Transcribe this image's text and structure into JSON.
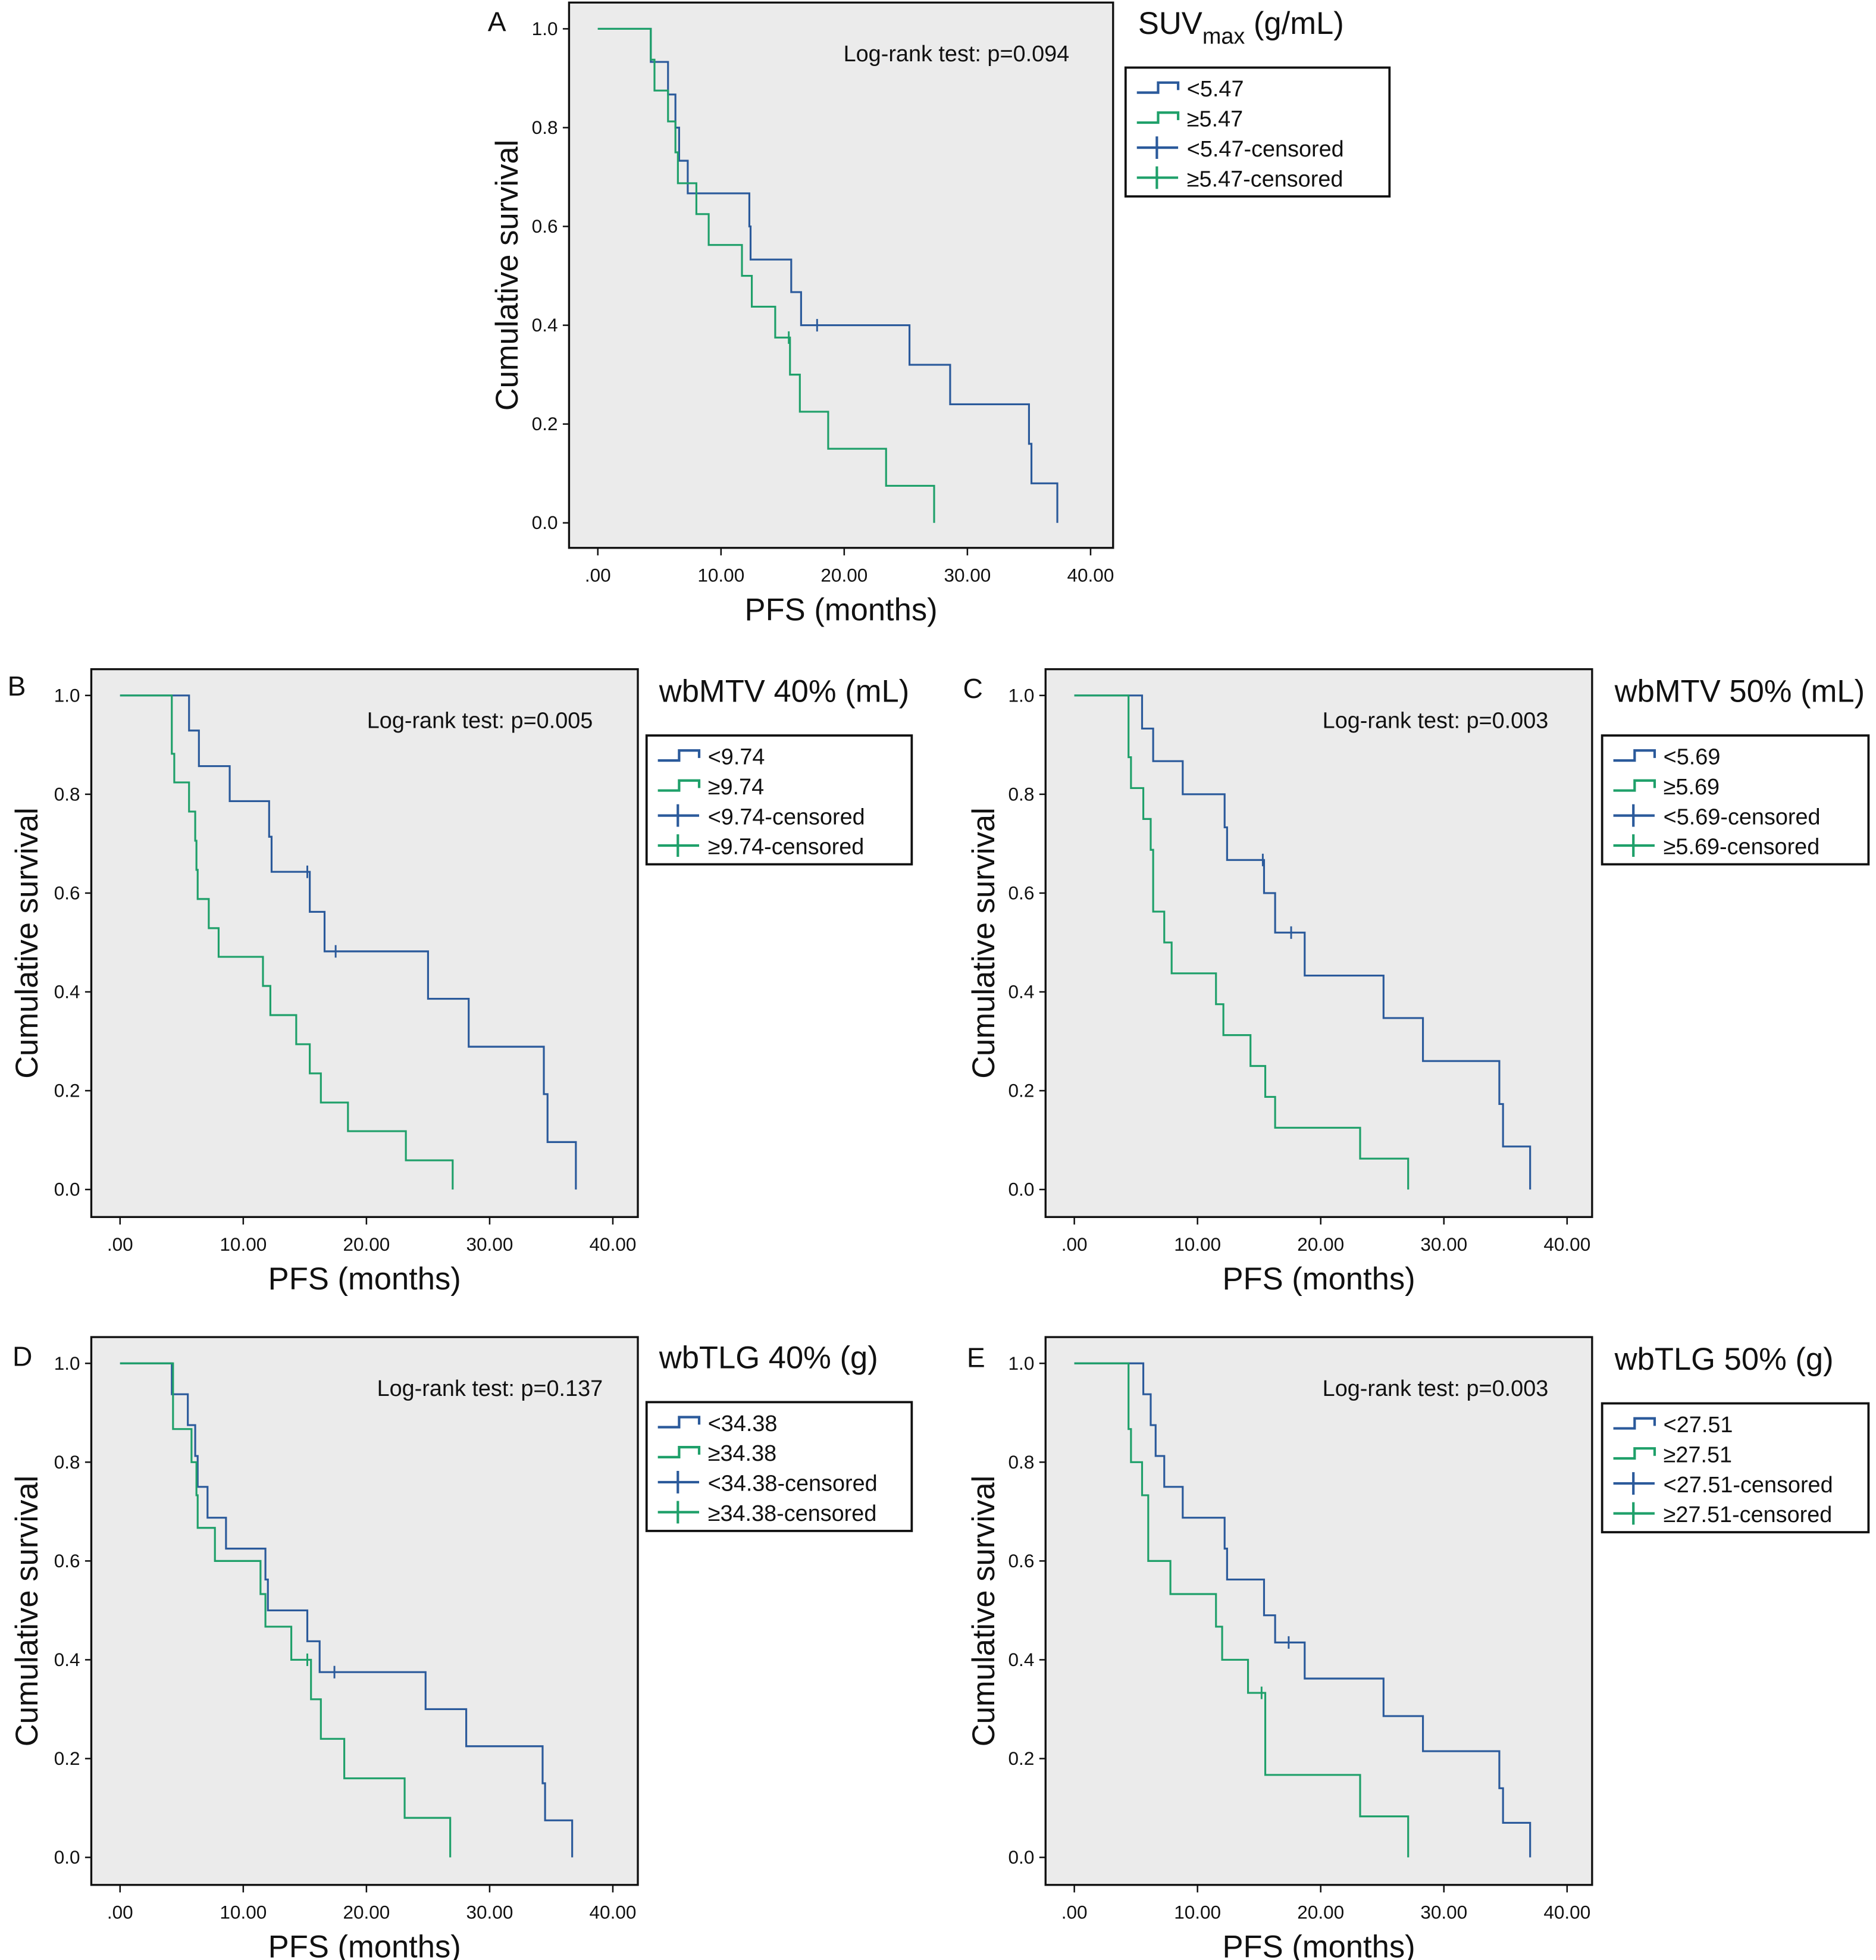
{
  "colors": {
    "low": "#2b5a9b",
    "high": "#1fa06a",
    "plot_bg": "#ebebeb",
    "frame": "#111111"
  },
  "chart_data": [
    {
      "type": "line",
      "subtype": "kaplan-meier step",
      "panel_label": "A",
      "legend_title": {
        "main": "SUV",
        "sub": "max",
        "rest": " (g/mL)"
      },
      "annotation": "Log-rank test: p=0.094",
      "xlabel": "PFS (months)",
      "ylabel": "Cumulative survival",
      "xlim": [
        0,
        40
      ],
      "ylim": [
        0,
        1
      ],
      "xticks": [
        ".00",
        "10.00",
        "20.00",
        "30.00",
        "40.00"
      ],
      "xtick_values": [
        0,
        10,
        20,
        30,
        40
      ],
      "yticks": [
        "0.0",
        "0.2",
        "0.4",
        "0.6",
        "0.8",
        "1.0"
      ],
      "ytick_values": [
        0,
        0.2,
        0.4,
        0.6,
        0.8,
        1.0
      ],
      "legend": [
        "<5.47",
        "≥5.47",
        "<5.47-censored",
        "≥5.47-censored"
      ],
      "series": [
        {
          "group": "low",
          "steps": [
            [
              0,
              1
            ],
            [
              4.3,
              0.933
            ],
            [
              5.7,
              0.867
            ],
            [
              6.3,
              0.8
            ],
            [
              6.6,
              0.733
            ],
            [
              7.3,
              0.667
            ],
            [
              12.3,
              0.6
            ],
            [
              12.4,
              0.533
            ],
            [
              15.7,
              0.467
            ],
            [
              16.5,
              0.4
            ],
            [
              25.3,
              0.32
            ],
            [
              28.6,
              0.24
            ],
            [
              35.0,
              0.16
            ],
            [
              35.2,
              0.08
            ],
            [
              37.3,
              0
            ]
          ],
          "censored": [
            [
              17.8,
              0.4
            ]
          ]
        },
        {
          "group": "high",
          "steps": [
            [
              0,
              1
            ],
            [
              4.3,
              0.9375
            ],
            [
              4.6,
              0.875
            ],
            [
              5.7,
              0.8125
            ],
            [
              6.3,
              0.75
            ],
            [
              6.5,
              0.6875
            ],
            [
              8.0,
              0.625
            ],
            [
              9.0,
              0.5625
            ],
            [
              11.7,
              0.5
            ],
            [
              12.5,
              0.4375
            ],
            [
              14.4,
              0.375
            ],
            [
              15.6,
              0.3
            ],
            [
              16.4,
              0.225
            ],
            [
              18.7,
              0.15
            ],
            [
              23.4,
              0.075
            ],
            [
              27.3,
              0
            ]
          ],
          "censored": [
            [
              15.5,
              0.375
            ]
          ]
        }
      ]
    },
    {
      "type": "line",
      "subtype": "kaplan-meier step",
      "panel_label": "B",
      "legend_title": {
        "main": "wbMTV 40% (mL)",
        "sub": "",
        "rest": ""
      },
      "annotation": "Log-rank test: p=0.005",
      "xlabel": "PFS (months)",
      "ylabel": "Cumulative survival",
      "xlim": [
        0,
        40
      ],
      "ylim": [
        0,
        1
      ],
      "xticks": [
        ".00",
        "10.00",
        "20.00",
        "30.00",
        "40.00"
      ],
      "xtick_values": [
        0,
        10,
        20,
        30,
        40
      ],
      "yticks": [
        "0.0",
        "0.2",
        "0.4",
        "0.6",
        "0.8",
        "1.0"
      ],
      "ytick_values": [
        0,
        0.2,
        0.4,
        0.6,
        0.8,
        1.0
      ],
      "legend": [
        "<9.74",
        "≥9.74",
        "<9.74-censored",
        "≥9.74-censored"
      ],
      "series": [
        {
          "group": "low",
          "steps": [
            [
              0,
              1
            ],
            [
              5.6,
              0.929
            ],
            [
              6.4,
              0.857
            ],
            [
              8.9,
              0.786
            ],
            [
              12.1,
              0.714
            ],
            [
              12.3,
              0.643
            ],
            [
              15.4,
              0.562
            ],
            [
              16.6,
              0.482
            ],
            [
              25.0,
              0.386
            ],
            [
              28.3,
              0.289
            ],
            [
              34.4,
              0.193
            ],
            [
              34.7,
              0.096
            ],
            [
              37.0,
              0
            ]
          ],
          "censored": [
            [
              15.2,
              0.643
            ],
            [
              17.5,
              0.482
            ]
          ]
        },
        {
          "group": "high",
          "steps": [
            [
              0,
              1
            ],
            [
              4.2,
              0.882
            ],
            [
              4.4,
              0.824
            ],
            [
              5.6,
              0.765
            ],
            [
              6.1,
              0.706
            ],
            [
              6.2,
              0.647
            ],
            [
              6.3,
              0.588
            ],
            [
              7.2,
              0.529
            ],
            [
              8.0,
              0.471
            ],
            [
              11.6,
              0.412
            ],
            [
              12.2,
              0.353
            ],
            [
              14.3,
              0.294
            ],
            [
              15.4,
              0.235
            ],
            [
              16.3,
              0.176
            ],
            [
              18.5,
              0.118
            ],
            [
              23.2,
              0.059
            ],
            [
              27.0,
              0
            ]
          ],
          "censored": []
        }
      ]
    },
    {
      "type": "line",
      "subtype": "kaplan-meier step",
      "panel_label": "C",
      "legend_title": {
        "main": "wbMTV 50% (mL)",
        "sub": "",
        "rest": ""
      },
      "annotation": "Log-rank test: p=0.003",
      "xlabel": "PFS (months)",
      "ylabel": "Cumulative survival",
      "xlim": [
        0,
        40
      ],
      "ylim": [
        0,
        1
      ],
      "xticks": [
        ".00",
        "10.00",
        "20.00",
        "30.00",
        "40.00"
      ],
      "xtick_values": [
        0,
        10,
        20,
        30,
        40
      ],
      "yticks": [
        "0.0",
        "0.2",
        "0.4",
        "0.6",
        "0.8",
        "1.0"
      ],
      "ytick_values": [
        0,
        0.2,
        0.4,
        0.6,
        0.8,
        1.0
      ],
      "legend": [
        "<5.69",
        "≥5.69",
        "<5.69-censored",
        "≥5.69-censored"
      ],
      "series": [
        {
          "group": "low",
          "steps": [
            [
              0,
              1
            ],
            [
              5.5,
              0.933
            ],
            [
              6.4,
              0.867
            ],
            [
              8.8,
              0.8
            ],
            [
              12.2,
              0.733
            ],
            [
              12.4,
              0.667
            ],
            [
              15.4,
              0.6
            ],
            [
              16.3,
              0.52
            ],
            [
              18.7,
              0.433
            ],
            [
              25.1,
              0.347
            ],
            [
              28.3,
              0.26
            ],
            [
              34.5,
              0.173
            ],
            [
              34.8,
              0.087
            ],
            [
              37.0,
              0
            ]
          ],
          "censored": [
            [
              15.3,
              0.667
            ],
            [
              17.6,
              0.52
            ]
          ]
        },
        {
          "group": "high",
          "steps": [
            [
              0,
              1
            ],
            [
              4.4,
              0.875
            ],
            [
              4.6,
              0.8125
            ],
            [
              5.6,
              0.75
            ],
            [
              6.2,
              0.6875
            ],
            [
              6.4,
              0.5625
            ],
            [
              7.3,
              0.5
            ],
            [
              7.9,
              0.4375
            ],
            [
              11.5,
              0.375
            ],
            [
              12.1,
              0.3125
            ],
            [
              14.3,
              0.25
            ],
            [
              15.5,
              0.1875
            ],
            [
              16.3,
              0.125
            ],
            [
              23.2,
              0.0625
            ],
            [
              27.1,
              0
            ]
          ],
          "censored": []
        }
      ]
    },
    {
      "type": "line",
      "subtype": "kaplan-meier step",
      "panel_label": "D",
      "legend_title": {
        "main": "wbTLG 40% (g)",
        "sub": "",
        "rest": ""
      },
      "annotation": "Log-rank test: p=0.137",
      "xlabel": "PFS (months)",
      "ylabel": "Cumulative survival",
      "xlim": [
        0,
        40
      ],
      "ylim": [
        0,
        1
      ],
      "xticks": [
        ".00",
        "10.00",
        "20.00",
        "30.00",
        "40.00"
      ],
      "xtick_values": [
        0,
        10,
        20,
        30,
        40
      ],
      "yticks": [
        "0.0",
        "0.2",
        "0.4",
        "0.6",
        "0.8",
        "1.0"
      ],
      "ytick_values": [
        0,
        0.2,
        0.4,
        0.6,
        0.8,
        1.0
      ],
      "legend": [
        "<34.38",
        "≥34.38",
        "<34.38-censored",
        "≥34.38-censored"
      ],
      "series": [
        {
          "group": "low",
          "steps": [
            [
              0,
              1
            ],
            [
              4.2,
              0.9375
            ],
            [
              5.5,
              0.875
            ],
            [
              6.1,
              0.8125
            ],
            [
              6.3,
              0.75
            ],
            [
              7.1,
              0.6875
            ],
            [
              8.6,
              0.625
            ],
            [
              11.8,
              0.5625
            ],
            [
              12.0,
              0.5
            ],
            [
              15.2,
              0.4375
            ],
            [
              16.2,
              0.375
            ],
            [
              24.8,
              0.3
            ],
            [
              28.1,
              0.225
            ],
            [
              34.3,
              0.15
            ],
            [
              34.5,
              0.075
            ],
            [
              36.7,
              0
            ]
          ],
          "censored": [
            [
              17.4,
              0.375
            ]
          ]
        },
        {
          "group": "high",
          "steps": [
            [
              0,
              1
            ],
            [
              4.3,
              0.867
            ],
            [
              5.8,
              0.8
            ],
            [
              6.2,
              0.733
            ],
            [
              6.3,
              0.667
            ],
            [
              7.7,
              0.6
            ],
            [
              11.4,
              0.533
            ],
            [
              11.8,
              0.467
            ],
            [
              13.9,
              0.4
            ],
            [
              15.5,
              0.32
            ],
            [
              16.3,
              0.24
            ],
            [
              18.2,
              0.16
            ],
            [
              23.1,
              0.08
            ],
            [
              26.8,
              0
            ]
          ],
          "censored": [
            [
              15.2,
              0.4
            ]
          ]
        }
      ]
    },
    {
      "type": "line",
      "subtype": "kaplan-meier step",
      "panel_label": "E",
      "legend_title": {
        "main": "wbTLG 50% (g)",
        "sub": "",
        "rest": ""
      },
      "annotation": "Log-rank test: p=0.003",
      "xlabel": "PFS (months)",
      "ylabel": "Cumulative survival",
      "xlim": [
        0,
        40
      ],
      "ylim": [
        0,
        1
      ],
      "xticks": [
        ".00",
        "10.00",
        "20.00",
        "30.00",
        "40.00"
      ],
      "xtick_values": [
        0,
        10,
        20,
        30,
        40
      ],
      "yticks": [
        "0.0",
        "0.2",
        "0.4",
        "0.6",
        "0.8",
        "1.0"
      ],
      "ytick_values": [
        0,
        0.2,
        0.4,
        0.6,
        0.8,
        1.0
      ],
      "legend": [
        "<27.51",
        "≥27.51",
        "<27.51-censored",
        "≥27.51-censored"
      ],
      "series": [
        {
          "group": "low",
          "steps": [
            [
              0,
              1
            ],
            [
              5.6,
              0.9375
            ],
            [
              6.2,
              0.875
            ],
            [
              6.6,
              0.8125
            ],
            [
              7.3,
              0.75
            ],
            [
              8.8,
              0.6875
            ],
            [
              12.2,
              0.625
            ],
            [
              12.4,
              0.5625
            ],
            [
              15.4,
              0.49
            ],
            [
              16.3,
              0.435
            ],
            [
              18.7,
              0.362
            ],
            [
              25.1,
              0.286
            ],
            [
              28.3,
              0.215
            ],
            [
              34.5,
              0.14
            ],
            [
              34.8,
              0.07
            ],
            [
              37.0,
              0
            ]
          ],
          "censored": [
            [
              17.4,
              0.435
            ]
          ]
        },
        {
          "group": "high",
          "steps": [
            [
              0,
              1
            ],
            [
              4.4,
              0.867
            ],
            [
              4.6,
              0.8
            ],
            [
              5.5,
              0.733
            ],
            [
              6.0,
              0.6
            ],
            [
              7.8,
              0.533
            ],
            [
              11.5,
              0.467
            ],
            [
              12.0,
              0.4
            ],
            [
              14.1,
              0.333
            ],
            [
              15.5,
              0.167
            ],
            [
              23.2,
              0.083
            ],
            [
              27.1,
              0
            ]
          ],
          "censored": [
            [
              15.2,
              0.333
            ]
          ]
        }
      ]
    }
  ]
}
